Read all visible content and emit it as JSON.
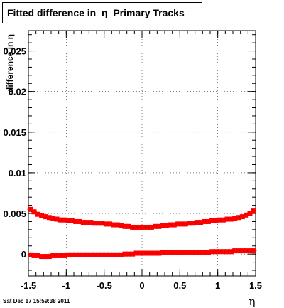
{
  "timestamp": "Sat Dec 17 15:59:38 2011",
  "chart_data": {
    "type": "scatter",
    "title": "Fitted difference in  η  Primary Tracks",
    "xlabel": "η",
    "ylabel": "difference in η",
    "xlim": [
      -1.5,
      1.5
    ],
    "ylim": [
      -0.0027,
      0.0275
    ],
    "grid": true,
    "x_ticks": [
      -1.5,
      -1,
      -0.5,
      0,
      0.5,
      1,
      1.5
    ],
    "x_tick_labels": [
      "-1.5",
      "-1",
      "-0.5",
      "0",
      "0.5",
      "1",
      "1.5"
    ],
    "y_ticks": [
      0,
      0.005,
      0.01,
      0.015,
      0.02,
      0.025
    ],
    "y_tick_labels": [
      "0",
      "0.005",
      "0.01",
      "0.015",
      "0.02",
      "0.025"
    ],
    "marker_color": "#ff0000",
    "series": [
      {
        "values_x": [
          -1.475,
          -1.425,
          -1.375,
          -1.325,
          -1.275,
          -1.225,
          -1.175,
          -1.125,
          -1.075,
          -1.025,
          -0.975,
          -0.925,
          -0.875,
          -0.825,
          -0.775,
          -0.725,
          -0.675,
          -0.625,
          -0.575,
          -0.525,
          -0.475,
          -0.425,
          -0.375,
          -0.325,
          -0.275,
          -0.225,
          -0.175,
          -0.125,
          -0.075,
          -0.025,
          0.025,
          0.075,
          0.125,
          0.175,
          0.225,
          0.275,
          0.325,
          0.375,
          0.425,
          0.475,
          0.525,
          0.575,
          0.625,
          0.675,
          0.725,
          0.775,
          0.825,
          0.875,
          0.925,
          0.975,
          1.025,
          1.075,
          1.125,
          1.175,
          1.225,
          1.275,
          1.325,
          1.375,
          1.425,
          1.475
        ],
        "values_y": [
          0.0055,
          0.0052,
          0.0049,
          0.0047,
          0.0046,
          0.0045,
          0.0044,
          0.0043,
          0.0042,
          0.0042,
          0.0041,
          0.0041,
          0.004,
          0.004,
          0.0039,
          0.0039,
          0.0039,
          0.0038,
          0.0038,
          0.0038,
          0.0037,
          0.0037,
          0.0036,
          0.0036,
          0.0035,
          0.0034,
          0.0034,
          0.0033,
          0.0033,
          0.0033,
          0.0033,
          0.0033,
          0.0033,
          0.0034,
          0.0034,
          0.0035,
          0.0035,
          0.0036,
          0.0036,
          0.0037,
          0.0037,
          0.0037,
          0.0038,
          0.0038,
          0.0039,
          0.0039,
          0.004,
          0.004,
          0.0041,
          0.0041,
          0.0042,
          0.0042,
          0.0043,
          0.0043,
          0.0044,
          0.0045,
          0.0046,
          0.0048,
          0.005,
          0.0053
        ]
      },
      {
        "values_x": [
          -1.475,
          -1.425,
          -1.375,
          -1.325,
          -1.275,
          -1.225,
          -1.175,
          -1.125,
          -1.075,
          -1.025,
          -0.975,
          -0.925,
          -0.875,
          -0.825,
          -0.775,
          -0.725,
          -0.675,
          -0.625,
          -0.575,
          -0.525,
          -0.475,
          -0.425,
          -0.375,
          -0.325,
          -0.275,
          -0.225,
          -0.175,
          -0.125,
          -0.075,
          -0.025,
          0.025,
          0.075,
          0.125,
          0.175,
          0.225,
          0.275,
          0.325,
          0.375,
          0.425,
          0.475,
          0.525,
          0.575,
          0.625,
          0.675,
          0.725,
          0.775,
          0.825,
          0.875,
          0.925,
          0.975,
          1.025,
          1.075,
          1.125,
          1.175,
          1.225,
          1.275,
          1.325,
          1.375,
          1.425,
          1.475
        ],
        "values_y": [
          -0.0001,
          -0.0002,
          -0.0002,
          -0.0003,
          -0.0003,
          -0.0003,
          -0.0002,
          -0.0002,
          -0.0002,
          -0.0002,
          -0.0001,
          -0.0001,
          -0.0001,
          -0.0001,
          -0.0001,
          -0.0001,
          -0.0001,
          -0.0001,
          -0.0001,
          -0.0001,
          -0.0001,
          -0.0001,
          -0.0001,
          -0.0001,
          -0.0001,
          0.0,
          0.0,
          0.0,
          0.0001,
          0.0001,
          0.0001,
          0.0001,
          0.0001,
          0.0001,
          0.0001,
          0.0002,
          0.0002,
          0.0002,
          0.0002,
          0.0002,
          0.0002,
          0.0002,
          0.0002,
          0.0002,
          0.0002,
          0.0002,
          0.0002,
          0.0002,
          0.0003,
          0.0003,
          0.0003,
          0.0003,
          0.0003,
          0.0003,
          0.0004,
          0.0004,
          0.0004,
          0.0004,
          0.0004,
          0.0004
        ]
      }
    ]
  }
}
